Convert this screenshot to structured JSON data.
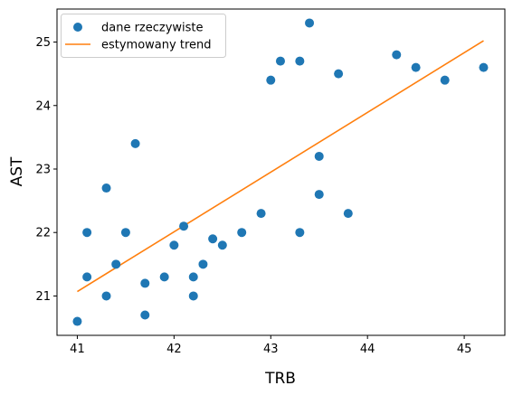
{
  "chart_data": {
    "type": "scatter",
    "xlabel": "TRB",
    "ylabel": "AST",
    "xlim": [
      40.79,
      45.42
    ],
    "ylim": [
      20.38,
      25.52
    ],
    "xticks": [
      41,
      42,
      43,
      44,
      45
    ],
    "yticks": [
      21,
      22,
      23,
      24,
      25
    ],
    "grid": false,
    "legend_position": "top-left",
    "series": [
      {
        "name": "dane rzeczywiste",
        "kind": "scatter",
        "color": "#1f77b4",
        "points": [
          [
            41.0,
            20.6
          ],
          [
            41.1,
            21.3
          ],
          [
            41.1,
            22.0
          ],
          [
            41.3,
            22.7
          ],
          [
            41.3,
            21.0
          ],
          [
            41.4,
            21.5
          ],
          [
            41.5,
            22.0
          ],
          [
            41.6,
            23.4
          ],
          [
            41.7,
            21.2
          ],
          [
            41.7,
            20.7
          ],
          [
            41.9,
            21.3
          ],
          [
            42.0,
            21.8
          ],
          [
            42.1,
            22.1
          ],
          [
            42.2,
            21.3
          ],
          [
            42.2,
            21.0
          ],
          [
            42.3,
            21.5
          ],
          [
            42.4,
            21.9
          ],
          [
            42.5,
            21.8
          ],
          [
            42.7,
            22.0
          ],
          [
            42.9,
            22.3
          ],
          [
            43.0,
            24.4
          ],
          [
            43.1,
            24.7
          ],
          [
            43.3,
            24.7
          ],
          [
            43.3,
            22.0
          ],
          [
            43.4,
            25.3
          ],
          [
            43.5,
            23.2
          ],
          [
            43.5,
            22.6
          ],
          [
            43.7,
            24.5
          ],
          [
            43.8,
            22.3
          ],
          [
            44.3,
            24.8
          ],
          [
            44.5,
            24.6
          ],
          [
            44.8,
            24.4
          ],
          [
            45.2,
            24.6
          ]
        ]
      },
      {
        "name": "estymowany trend",
        "kind": "line",
        "color": "#ff7f0e",
        "x": [
          41.0,
          45.2
        ],
        "y": [
          21.07,
          25.02
        ]
      }
    ]
  }
}
